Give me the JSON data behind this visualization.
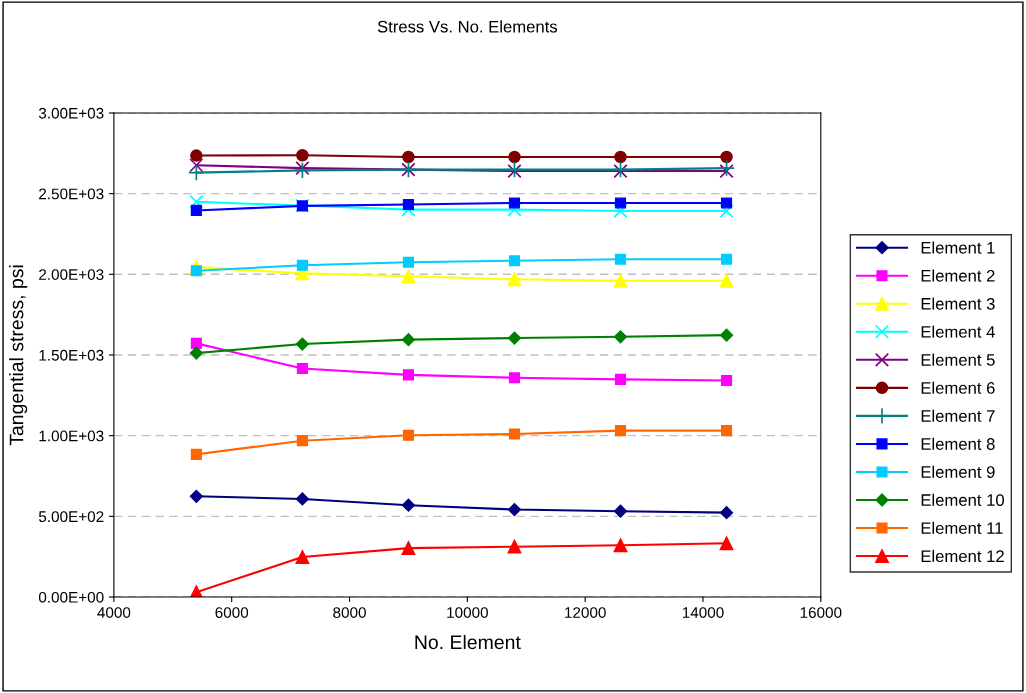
{
  "chart_data": {
    "type": "line",
    "title": "Stress Vs. No. Elements",
    "xlabel": "No. Element",
    "ylabel": "Tangential stress, psi",
    "x": [
      5400,
      7200,
      9000,
      10800,
      12600,
      14400
    ],
    "xlim": [
      4000,
      16000
    ],
    "xticks": [
      4000,
      6000,
      8000,
      10000,
      12000,
      14000,
      16000
    ],
    "ylim": [
      0,
      3000
    ],
    "yticks": [
      {
        "value": 0,
        "label": "0.00E+00"
      },
      {
        "value": 500,
        "label": "5.00E+02"
      },
      {
        "value": 1000,
        "label": "1.00E+03"
      },
      {
        "value": 1500,
        "label": "1.50E+03"
      },
      {
        "value": 2000,
        "label": "2.00E+03"
      },
      {
        "value": 2500,
        "label": "2.50E+03"
      },
      {
        "value": 3000,
        "label": "3.00E+03"
      }
    ],
    "grid": "y",
    "legend": "right",
    "line_style": "solid",
    "series": [
      {
        "name": "Element 1",
        "color": "#000080",
        "marker": "diamond",
        "values": [
          624,
          608,
          569,
          542,
          532,
          523
        ]
      },
      {
        "name": "Element 2",
        "color": "#ff00ff",
        "marker": "square",
        "values": [
          1572,
          1416,
          1377,
          1359,
          1349,
          1342
        ]
      },
      {
        "name": "Element 3",
        "color": "#ffff00",
        "marker": "triangle",
        "values": [
          2045,
          2006,
          1988,
          1969,
          1960,
          1960
        ]
      },
      {
        "name": "Element 4",
        "color": "#00ffff",
        "marker": "cross",
        "values": [
          2449,
          2426,
          2401,
          2401,
          2392,
          2392
        ]
      },
      {
        "name": "Element 5",
        "color": "#800080",
        "marker": "cross",
        "values": [
          2676,
          2658,
          2649,
          2640,
          2640,
          2640
        ]
      },
      {
        "name": "Element 6",
        "color": "#800000",
        "marker": "circle",
        "values": [
          2736,
          2738,
          2727,
          2727,
          2727,
          2727
        ]
      },
      {
        "name": "Element 7",
        "color": "#008080",
        "marker": "plus",
        "values": [
          2630,
          2644,
          2649,
          2649,
          2649,
          2658
        ]
      },
      {
        "name": "Element 8",
        "color": "#0000ff",
        "marker": "square",
        "values": [
          2396,
          2424,
          2433,
          2442,
          2442,
          2442
        ]
      },
      {
        "name": "Element 9",
        "color": "#00ccff",
        "marker": "square",
        "values": [
          2022,
          2056,
          2075,
          2084,
          2093,
          2093
        ]
      },
      {
        "name": "Element 10",
        "color": "#008000",
        "marker": "diamond",
        "values": [
          1512,
          1568,
          1595,
          1605,
          1613,
          1623
        ]
      },
      {
        "name": "Element 11",
        "color": "#ff6600",
        "marker": "square",
        "values": [
          884,
          969,
          1003,
          1010,
          1031,
          1031
        ]
      },
      {
        "name": "Element 12",
        "color": "#ff0000",
        "marker": "triangle",
        "values": [
          30,
          248,
          303,
          312,
          321,
          333
        ]
      }
    ]
  }
}
